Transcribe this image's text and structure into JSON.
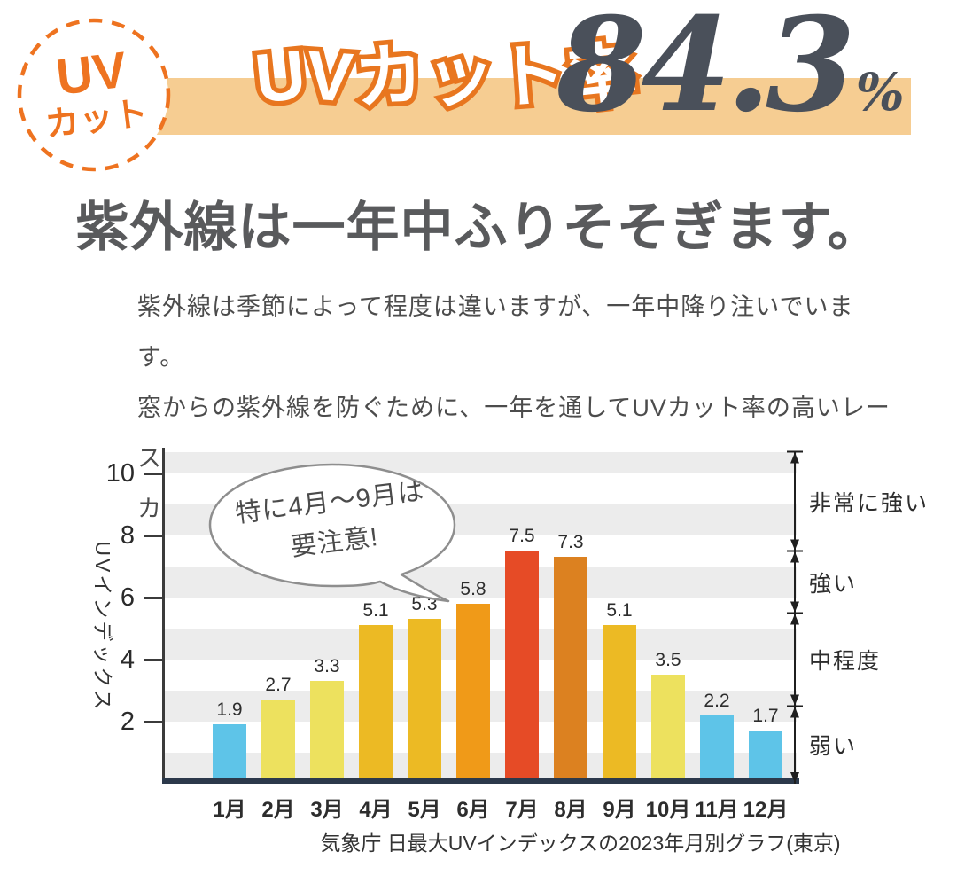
{
  "colors": {
    "accent_orange": "#ee7320",
    "outline_orange": "#e8761f",
    "banner_bg": "#f6cd92",
    "number_dark": "#4a505a",
    "heading_gray": "#595a5c",
    "body_gray": "#4c4c4c",
    "stripe_gray": "#ececec",
    "baseline_navy": "#2c394b"
  },
  "badge": {
    "line1": "UV",
    "line2": "カット"
  },
  "banner": {
    "label": "UVカット率",
    "value": "84.3",
    "unit": "%"
  },
  "heading": "紫外線は一年中ふりそそぎます。",
  "body": {
    "line1": "紫外線は季節によって程度は違いますが、一年中降り注いでいます。",
    "line2": "窓からの紫外線を防ぐために、一年を通してUVカット率の高いレース",
    "line3": "カーテンをお使いください。"
  },
  "chart_data": {
    "type": "bar",
    "title": "",
    "xlabel": "",
    "ylabel": "UVインデックス",
    "categories": [
      "1月",
      "2月",
      "3月",
      "4月",
      "5月",
      "6月",
      "7月",
      "8月",
      "9月",
      "10月",
      "11月",
      "12月"
    ],
    "values": [
      1.9,
      2.7,
      3.3,
      5.1,
      5.3,
      5.8,
      7.5,
      7.3,
      5.1,
      3.5,
      2.2,
      1.7
    ],
    "bar_colors": [
      "#5ec4e8",
      "#ede15e",
      "#ede15e",
      "#ecba24",
      "#ecba24",
      "#f09a18",
      "#e64b26",
      "#dc8120",
      "#ecba24",
      "#ede15e",
      "#5ec4e8",
      "#5ec4e8"
    ],
    "yticks": [
      2,
      4,
      6,
      8,
      10
    ],
    "ylim": [
      0,
      10.7
    ],
    "grid": "horizontal-striped-bands",
    "legend": "none",
    "levels": [
      {
        "label": "非常に強い",
        "from": 7.5,
        "to": 10.7
      },
      {
        "label": "強い",
        "from": 5.5,
        "to": 7.5
      },
      {
        "label": "中程度",
        "from": 2.5,
        "to": 5.5
      },
      {
        "label": "弱い",
        "from": 0,
        "to": 2.5
      }
    ],
    "annotation": {
      "line1": "特に4月〜9月は",
      "line2": "要注意!"
    },
    "caption": "気象庁 日最大UVインデックスの2023年月別グラフ(東京)"
  }
}
